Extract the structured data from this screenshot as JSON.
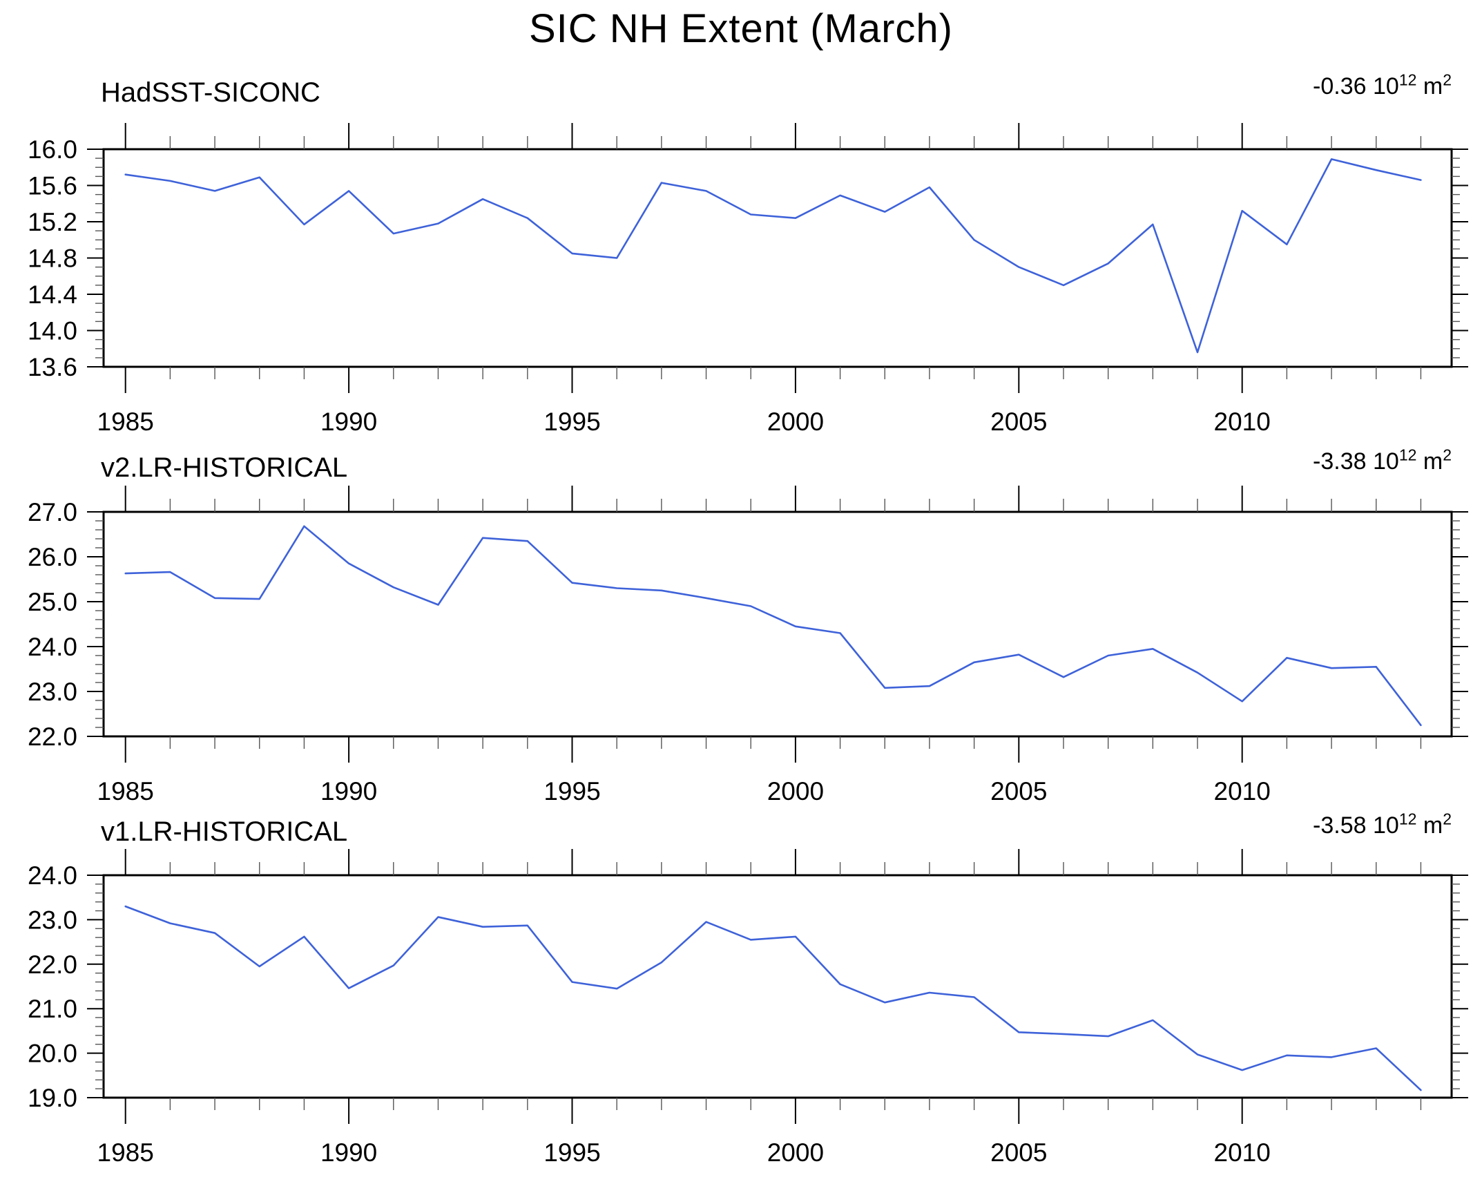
{
  "title": "SIC NH Extent (March)",
  "line_color": "#3e62d9",
  "axis_color": "#000000",
  "minor_tick_color": "#555555",
  "chart_data": {
    "type": "line",
    "x_years": [
      1985,
      1986,
      1987,
      1988,
      1989,
      1990,
      1991,
      1992,
      1993,
      1994,
      1995,
      1996,
      1997,
      1998,
      1999,
      2000,
      2001,
      2002,
      2003,
      2004,
      2005,
      2006,
      2007,
      2008,
      2009,
      2010,
      2011,
      2012,
      2013,
      2014
    ],
    "x_major_ticks": [
      1985,
      1990,
      1995,
      2000,
      2005,
      2010
    ],
    "x_tick_labels": [
      "1985",
      "1990",
      "1995",
      "2000",
      "2005",
      "2010"
    ],
    "x_axis_range": [
      1984.5,
      2014.7
    ],
    "legend_position": "none",
    "grid": "off",
    "panels": [
      {
        "name": "HadSST-SICONC",
        "annotation": {
          "coef": "-0.36",
          "base": "10",
          "exponent": "12",
          "unit": "m",
          "unit_exponent": "2"
        },
        "ylim": [
          13.6,
          16.0
        ],
        "y_major_ticks": [
          16.0,
          15.6,
          15.2,
          14.8,
          14.4,
          14.0,
          13.6
        ],
        "y_tick_labels": [
          "16.0",
          "15.6",
          "15.2",
          "14.8",
          "14.4",
          "14.0",
          "13.6"
        ],
        "y_minor_step": 0.1,
        "values": [
          15.72,
          15.65,
          15.54,
          15.69,
          15.17,
          15.54,
          15.07,
          15.18,
          15.45,
          15.24,
          14.85,
          14.8,
          15.63,
          15.54,
          15.28,
          15.24,
          15.49,
          15.31,
          15.58,
          15.0,
          14.7,
          14.5,
          14.74,
          15.17,
          13.76,
          15.32,
          14.95,
          15.89,
          15.77,
          15.66
        ]
      },
      {
        "name": "v2.LR-HISTORICAL",
        "annotation": {
          "coef": "-3.38",
          "base": "10",
          "exponent": "12",
          "unit": "m",
          "unit_exponent": "2"
        },
        "ylim": [
          22.0,
          27.0
        ],
        "y_major_ticks": [
          27.0,
          26.0,
          25.0,
          24.0,
          23.0,
          22.0
        ],
        "y_tick_labels": [
          "27.0",
          "26.0",
          "25.0",
          "24.0",
          "23.0",
          "22.0"
        ],
        "y_minor_step": 0.2,
        "values": [
          25.63,
          25.66,
          25.08,
          25.06,
          26.68,
          25.85,
          25.32,
          24.93,
          26.42,
          26.35,
          25.42,
          25.3,
          25.25,
          25.08,
          24.9,
          24.45,
          24.3,
          23.08,
          23.12,
          23.65,
          23.82,
          23.32,
          23.8,
          23.95,
          23.42,
          22.78,
          23.75,
          23.52,
          23.55,
          22.25
        ]
      },
      {
        "name": "v1.LR-HISTORICAL",
        "annotation": {
          "coef": "-3.58",
          "base": "10",
          "exponent": "12",
          "unit": "m",
          "unit_exponent": "2"
        },
        "ylim": [
          19.0,
          24.0
        ],
        "y_major_ticks": [
          24.0,
          23.0,
          22.0,
          21.0,
          20.0,
          19.0
        ],
        "y_tick_labels": [
          "24.0",
          "23.0",
          "22.0",
          "21.0",
          "20.0",
          "19.0"
        ],
        "y_minor_step": 0.2,
        "values": [
          23.3,
          22.92,
          22.7,
          21.95,
          22.62,
          21.46,
          21.97,
          23.06,
          22.84,
          22.87,
          21.6,
          21.45,
          22.04,
          22.95,
          22.55,
          22.62,
          21.55,
          21.14,
          21.36,
          21.26,
          20.47,
          20.43,
          20.38,
          20.74,
          19.97,
          19.62,
          19.95,
          19.91,
          20.11,
          19.17
        ]
      }
    ]
  }
}
